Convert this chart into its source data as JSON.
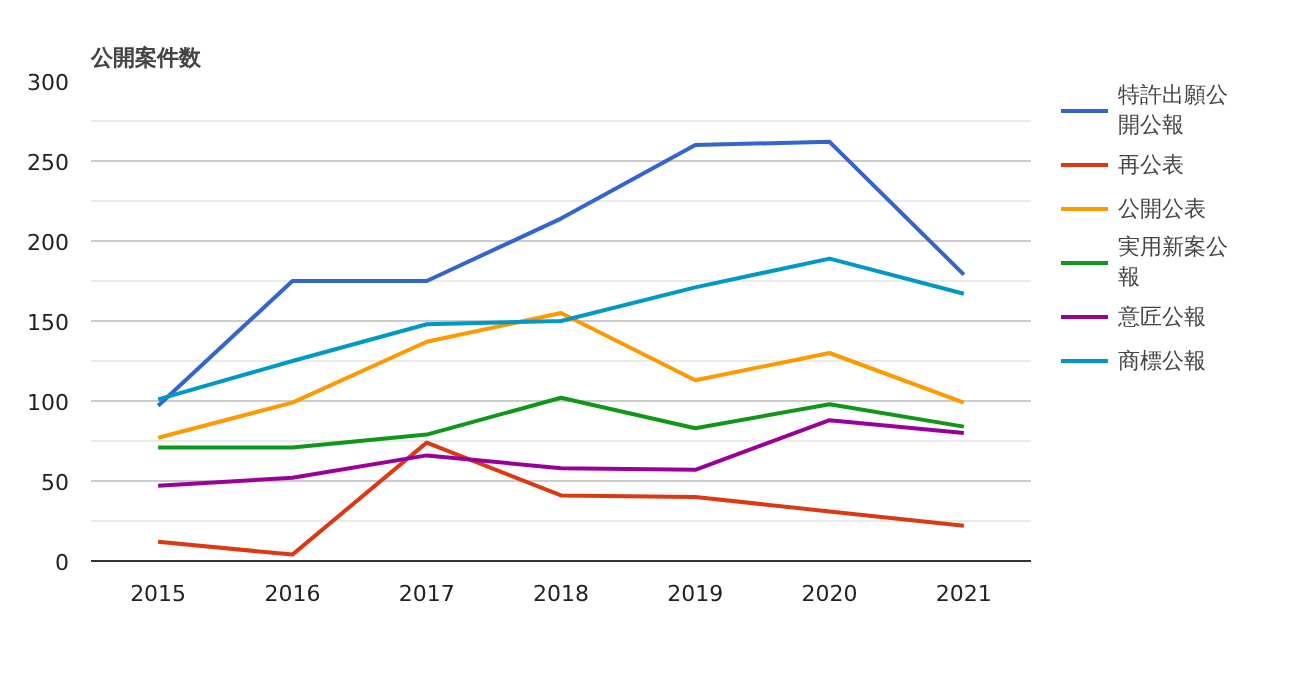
{
  "chart_data": {
    "type": "line",
    "title": "公開案件数",
    "categories": [
      "2015",
      "2016",
      "2017",
      "2018",
      "2019",
      "2020",
      "2021"
    ],
    "ylim": [
      0,
      300
    ],
    "yticks": [
      0,
      50,
      100,
      150,
      200,
      250,
      300
    ],
    "grid": "y",
    "legend": "right",
    "line_style": "solid",
    "series": [
      {
        "name": "特許出願公開公報",
        "color": "#3366cc",
        "values": [
          97,
          175,
          175,
          214,
          260,
          262,
          179
        ]
      },
      {
        "name": "再公表",
        "color": "#dc3912",
        "values": [
          12,
          4,
          74,
          41,
          40,
          31,
          22
        ]
      },
      {
        "name": "公開公表",
        "color": "#ff9900",
        "values": [
          77,
          99,
          137,
          155,
          113,
          130,
          99
        ]
      },
      {
        "name": "実用新案公報",
        "color": "#109618",
        "values": [
          71,
          71,
          79,
          102,
          83,
          98,
          84
        ]
      },
      {
        "name": "意匠公報",
        "color": "#990099",
        "values": [
          47,
          52,
          66,
          58,
          57,
          88,
          80
        ]
      },
      {
        "name": "商標公報",
        "color": "#0099c6",
        "values": [
          101,
          125,
          148,
          150,
          171,
          189,
          167
        ]
      }
    ]
  }
}
